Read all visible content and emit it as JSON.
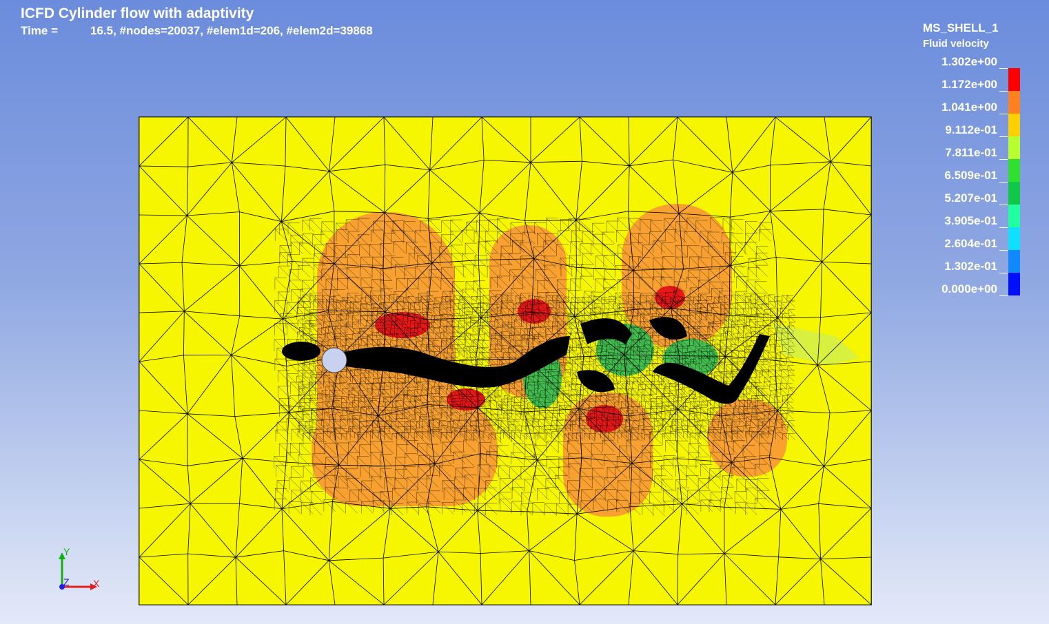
{
  "header": {
    "title": "ICFD Cylinder flow with adaptivity",
    "time_label": "Time =",
    "time_info": "16.5, #nodes=20037, #elem1d=206, #elem2d=39868"
  },
  "legend": {
    "part_name": "MS_SHELL_1",
    "quantity": "Fluid velocity",
    "labels": [
      "1.302e+00",
      "1.172e+00",
      "1.041e+00",
      "9.112e-01",
      "7.811e-01",
      "6.509e-01",
      "5.207e-01",
      "3.905e-01",
      "2.604e-01",
      "1.302e-01",
      "0.000e+00"
    ],
    "colors": [
      "#ff0000",
      "#ff8020",
      "#ffd000",
      "#b8ff30",
      "#30e030",
      "#10c848",
      "#20ffa0",
      "#10e0ff",
      "#1088ff",
      "#0010ff"
    ]
  },
  "axes": {
    "x": "X",
    "y": "Y",
    "z": "Z"
  },
  "colors": {
    "domain_background": "#f6f600",
    "mesh_line": "#000000",
    "orange_region": "#f8a030",
    "red_region": "#e81818",
    "green_region": "#44c050",
    "light_green_region": "#d8f040",
    "cylinder": "#c8d2f0"
  }
}
